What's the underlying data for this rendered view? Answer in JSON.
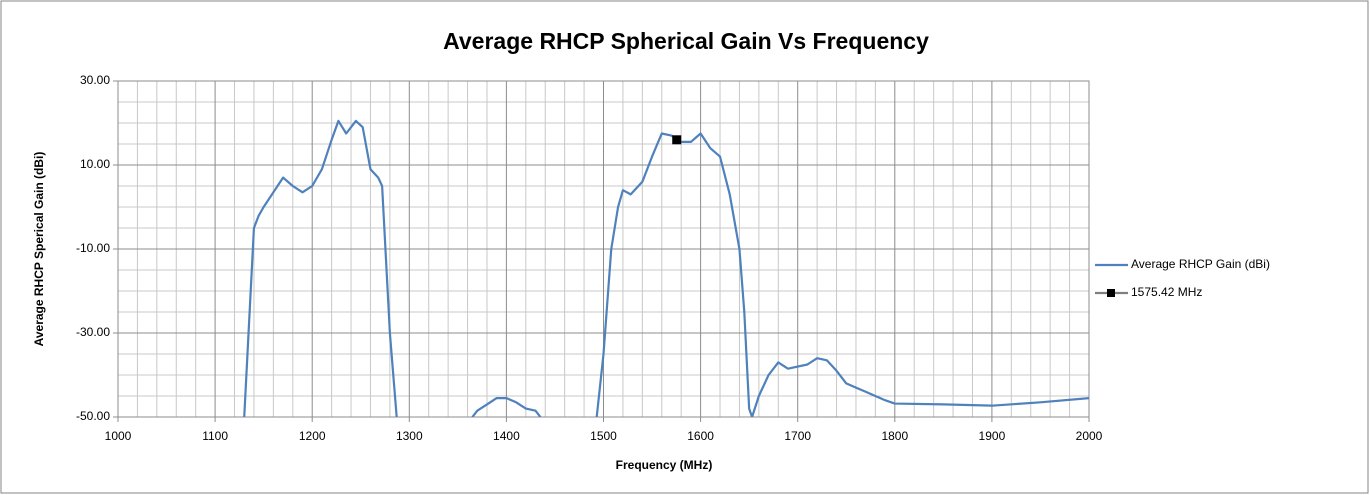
{
  "chart_data": {
    "type": "line",
    "title": "Average RHCP Spherical Gain Vs Frequency",
    "x_label": "Frequency (MHz)",
    "y_label": "Average RHCP Sperical Gain (dBi)",
    "xlim": [
      1000,
      2000
    ],
    "xticks": [
      1000,
      1100,
      1200,
      1300,
      1400,
      1500,
      1600,
      1700,
      1800,
      1900,
      2000
    ],
    "xminorticks": [
      1020,
      1040,
      1060,
      1080,
      1120,
      1140,
      1160,
      1180,
      1220,
      1240,
      1260,
      1280,
      1320,
      1340,
      1360,
      1380,
      1420,
      1440,
      1460,
      1480,
      1520,
      1540,
      1560,
      1580,
      1620,
      1640,
      1660,
      1680,
      1720,
      1740,
      1760,
      1780,
      1820,
      1840,
      1860,
      1880,
      1920,
      1940,
      1960,
      1980
    ],
    "ylim": [
      -50,
      30
    ],
    "yticks": [
      {
        "value": 30,
        "label": "30.00"
      },
      {
        "value": 10,
        "label": "10.00"
      },
      {
        "value": -10,
        "label": "-10.00"
      },
      {
        "value": -30,
        "label": "-30.00"
      },
      {
        "value": -50,
        "label": "-50.00"
      }
    ],
    "yminorticks": [
      25,
      20,
      15,
      5,
      0,
      -5,
      -15,
      -20,
      -25,
      -35,
      -40,
      -45
    ],
    "grid": true,
    "legend": "right",
    "series": [
      {
        "name": "Average RHCP Gain (dBi)",
        "color": "#4f81bd",
        "marker": "none",
        "x": [
          1130,
          1140,
          1145,
          1150,
          1160,
          1170,
          1180,
          1190,
          1200,
          1210,
          1220,
          1227,
          1235,
          1245,
          1252,
          1260,
          1268,
          1272,
          1280,
          1287,
          1300,
          1365,
          1370,
          1380,
          1390,
          1400,
          1410,
          1420,
          1430,
          1435,
          1460,
          1493,
          1500,
          1508,
          1515,
          1520,
          1528,
          1540,
          1550,
          1560,
          1570,
          1580,
          1590,
          1600,
          1610,
          1620,
          1630,
          1640,
          1645,
          1650,
          1653,
          1660,
          1670,
          1680,
          1690,
          1700,
          1710,
          1720,
          1730,
          1740,
          1750,
          1760,
          1770,
          1780,
          1790,
          1800,
          1850,
          1900,
          1950,
          2000
        ],
        "values": [
          -50,
          -5,
          -2,
          0,
          3.5,
          7,
          5,
          3.5,
          5,
          9,
          16,
          20.5,
          17.5,
          20.5,
          19,
          9,
          7,
          5,
          -30,
          -50,
          null,
          -50,
          -48.5,
          -47,
          -45.5,
          -45.5,
          -46.5,
          -48,
          -48.5,
          -50,
          null,
          -50,
          -35,
          -10,
          0,
          4,
          3,
          6,
          12,
          17.5,
          17,
          15.5,
          15.5,
          17.5,
          14,
          12,
          3,
          -10,
          -25,
          -48,
          -50,
          -45,
          -40,
          -37,
          -38.5,
          -38,
          -37.5,
          -36,
          -36.5,
          -39,
          -42,
          -43,
          -44,
          -45,
          -46,
          -46.8,
          -47,
          -47.3,
          -46.5,
          -45.5
        ]
      },
      {
        "name": "1575.42 MHz",
        "color": "#000000",
        "marker": "square",
        "x": [
          1575.42
        ],
        "values": [
          16
        ]
      }
    ]
  }
}
